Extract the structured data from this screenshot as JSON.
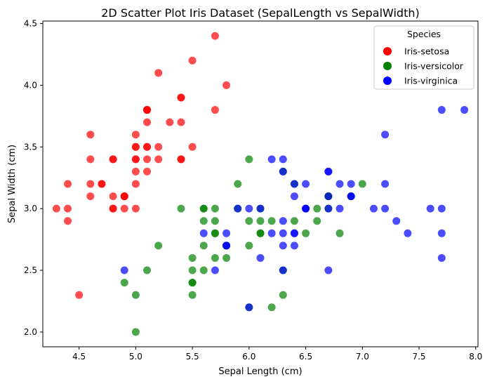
{
  "chart_data": {
    "type": "scatter",
    "title": "2D Scatter Plot Iris Dataset (SepalLength vs SepalWidth)",
    "xlabel": "Sepal Length (cm)",
    "ylabel": "Sepal Width (cm)",
    "xlim": [
      4.18,
      8.02
    ],
    "ylim": [
      1.88,
      4.52
    ],
    "xticks": [
      4.5,
      5.0,
      5.5,
      6.0,
      6.5,
      7.0,
      7.5,
      8.0
    ],
    "xtick_labels": [
      "4.5",
      "5.0",
      "5.5",
      "6.0",
      "6.5",
      "7.0",
      "7.5",
      "8.0"
    ],
    "yticks": [
      2.0,
      2.5,
      3.0,
      3.5,
      4.0,
      4.5
    ],
    "ytick_labels": [
      "2.0",
      "2.5",
      "3.0",
      "3.5",
      "4.0",
      "4.5"
    ],
    "grid": false,
    "legend": {
      "title": "Species",
      "placement": "top-right"
    },
    "series": [
      {
        "name": "Iris-setosa",
        "color": "#ff0000",
        "points": [
          [
            5.1,
            3.5
          ],
          [
            4.9,
            3.0
          ],
          [
            4.7,
            3.2
          ],
          [
            4.6,
            3.1
          ],
          [
            5.0,
            3.6
          ],
          [
            5.4,
            3.9
          ],
          [
            4.6,
            3.4
          ],
          [
            5.0,
            3.4
          ],
          [
            4.4,
            2.9
          ],
          [
            4.9,
            3.1
          ],
          [
            5.4,
            3.7
          ],
          [
            4.8,
            3.4
          ],
          [
            4.8,
            3.0
          ],
          [
            4.3,
            3.0
          ],
          [
            5.8,
            4.0
          ],
          [
            5.7,
            4.4
          ],
          [
            5.4,
            3.9
          ],
          [
            5.1,
            3.5
          ],
          [
            5.7,
            3.8
          ],
          [
            5.1,
            3.8
          ],
          [
            5.4,
            3.4
          ],
          [
            5.1,
            3.7
          ],
          [
            4.6,
            3.6
          ],
          [
            5.1,
            3.3
          ],
          [
            4.8,
            3.4
          ],
          [
            5.0,
            3.0
          ],
          [
            5.0,
            3.4
          ],
          [
            5.2,
            3.5
          ],
          [
            5.2,
            3.4
          ],
          [
            4.7,
            3.2
          ],
          [
            4.8,
            3.1
          ],
          [
            5.4,
            3.4
          ],
          [
            5.2,
            4.1
          ],
          [
            5.5,
            4.2
          ],
          [
            4.9,
            3.1
          ],
          [
            5.0,
            3.2
          ],
          [
            5.5,
            3.5
          ],
          [
            4.9,
            3.1
          ],
          [
            4.4,
            3.0
          ],
          [
            5.1,
            3.4
          ],
          [
            5.0,
            3.5
          ],
          [
            4.5,
            2.3
          ],
          [
            4.4,
            3.2
          ],
          [
            5.0,
            3.5
          ],
          [
            5.1,
            3.8
          ],
          [
            4.8,
            3.0
          ],
          [
            5.1,
            3.8
          ],
          [
            4.6,
            3.2
          ],
          [
            5.3,
            3.7
          ],
          [
            5.0,
            3.3
          ]
        ]
      },
      {
        "name": "Iris-versicolor",
        "color": "#008000",
        "points": [
          [
            7.0,
            3.2
          ],
          [
            6.4,
            3.2
          ],
          [
            6.9,
            3.1
          ],
          [
            5.5,
            2.3
          ],
          [
            6.5,
            2.8
          ],
          [
            5.7,
            2.8
          ],
          [
            6.3,
            3.3
          ],
          [
            4.9,
            2.4
          ],
          [
            6.6,
            2.9
          ],
          [
            5.2,
            2.7
          ],
          [
            5.0,
            2.0
          ],
          [
            5.9,
            3.0
          ],
          [
            6.0,
            2.2
          ],
          [
            6.1,
            2.9
          ],
          [
            5.6,
            2.9
          ],
          [
            6.7,
            3.1
          ],
          [
            5.6,
            3.0
          ],
          [
            5.8,
            2.7
          ],
          [
            6.2,
            2.2
          ],
          [
            5.6,
            2.5
          ],
          [
            5.9,
            3.2
          ],
          [
            6.1,
            2.8
          ],
          [
            6.3,
            2.5
          ],
          [
            6.1,
            2.8
          ],
          [
            6.4,
            2.9
          ],
          [
            6.6,
            3.0
          ],
          [
            6.8,
            2.8
          ],
          [
            6.7,
            3.0
          ],
          [
            6.0,
            2.9
          ],
          [
            5.7,
            2.6
          ],
          [
            5.5,
            2.4
          ],
          [
            5.5,
            2.4
          ],
          [
            5.8,
            2.7
          ],
          [
            6.0,
            2.7
          ],
          [
            5.4,
            3.0
          ],
          [
            6.0,
            3.4
          ],
          [
            6.7,
            3.1
          ],
          [
            6.3,
            2.3
          ],
          [
            5.6,
            3.0
          ],
          [
            5.5,
            2.5
          ],
          [
            5.5,
            2.6
          ],
          [
            6.1,
            3.0
          ],
          [
            5.8,
            2.6
          ],
          [
            5.0,
            2.3
          ],
          [
            5.6,
            2.7
          ],
          [
            5.7,
            3.0
          ],
          [
            5.7,
            2.9
          ],
          [
            6.2,
            2.9
          ],
          [
            5.1,
            2.5
          ],
          [
            5.7,
            2.8
          ]
        ]
      },
      {
        "name": "Iris-virginica",
        "color": "#0000ff",
        "points": [
          [
            6.3,
            3.3
          ],
          [
            5.8,
            2.7
          ],
          [
            7.1,
            3.0
          ],
          [
            6.3,
            2.9
          ],
          [
            6.5,
            3.0
          ],
          [
            7.6,
            3.0
          ],
          [
            4.9,
            2.5
          ],
          [
            7.3,
            2.9
          ],
          [
            6.7,
            2.5
          ],
          [
            7.2,
            3.6
          ],
          [
            6.5,
            3.2
          ],
          [
            6.4,
            2.7
          ],
          [
            6.8,
            3.0
          ],
          [
            5.7,
            2.5
          ],
          [
            5.8,
            2.8
          ],
          [
            6.4,
            3.2
          ],
          [
            6.5,
            3.0
          ],
          [
            7.7,
            3.8
          ],
          [
            7.7,
            2.6
          ],
          [
            6.0,
            2.2
          ],
          [
            6.9,
            3.2
          ],
          [
            5.6,
            2.8
          ],
          [
            7.7,
            2.8
          ],
          [
            6.3,
            2.7
          ],
          [
            6.7,
            3.3
          ],
          [
            7.2,
            3.2
          ],
          [
            6.2,
            2.8
          ],
          [
            6.1,
            3.0
          ],
          [
            6.4,
            2.8
          ],
          [
            7.2,
            3.0
          ],
          [
            7.4,
            2.8
          ],
          [
            7.9,
            3.8
          ],
          [
            6.4,
            2.8
          ],
          [
            6.3,
            2.8
          ],
          [
            6.1,
            2.6
          ],
          [
            7.7,
            3.0
          ],
          [
            6.3,
            3.4
          ],
          [
            6.4,
            3.1
          ],
          [
            6.0,
            3.0
          ],
          [
            6.9,
            3.1
          ],
          [
            6.7,
            3.1
          ],
          [
            6.9,
            3.1
          ],
          [
            5.8,
            2.7
          ],
          [
            6.8,
            3.2
          ],
          [
            6.7,
            3.3
          ],
          [
            6.7,
            3.0
          ],
          [
            6.3,
            2.5
          ],
          [
            6.5,
            3.0
          ],
          [
            6.2,
            3.4
          ],
          [
            5.9,
            3.0
          ]
        ]
      }
    ]
  }
}
